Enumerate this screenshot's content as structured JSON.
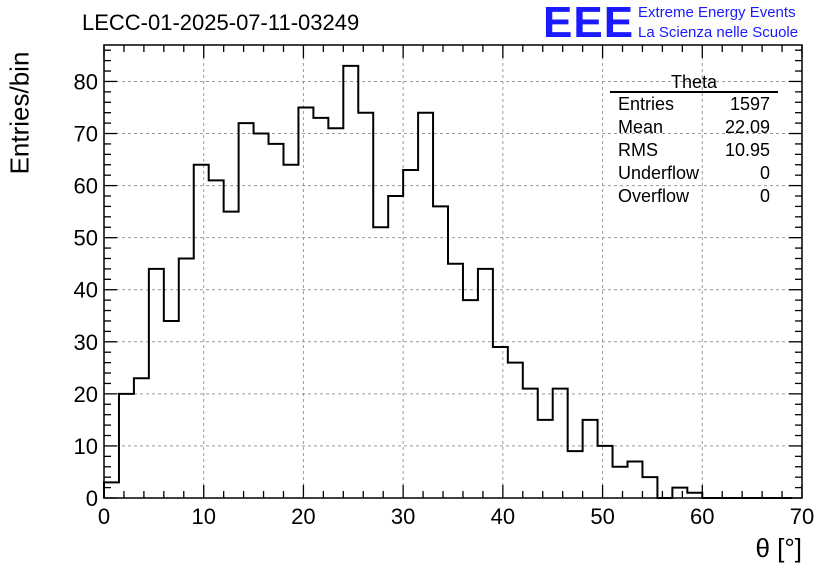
{
  "title": "LECC-01-2025-07-11-03249",
  "logo": {
    "mark": "EEE",
    "line1": "Extreme Energy Events",
    "line2": "La Scienza nelle Scuole",
    "color": "#1a1aff"
  },
  "stats_box": {
    "title": "Theta",
    "rows": [
      {
        "label": "Entries",
        "value": "1597"
      },
      {
        "label": "Mean",
        "value": "22.09"
      },
      {
        "label": "RMS",
        "value": "10.95"
      },
      {
        "label": "Underflow",
        "value": "0"
      },
      {
        "label": "Overflow",
        "value": "0"
      }
    ]
  },
  "chart_data": {
    "type": "bar",
    "style": "step-histogram",
    "xlabel": "θ [°]",
    "ylabel": "Entries/bin",
    "xlim": [
      0,
      70
    ],
    "ylim": [
      0,
      87
    ],
    "grid": true,
    "bin_width": 1.5,
    "x_ticks": [
      0,
      10,
      20,
      30,
      40,
      50,
      60,
      70
    ],
    "y_ticks": [
      0,
      10,
      20,
      30,
      40,
      50,
      60,
      70,
      80
    ],
    "bin_edges": [
      0,
      1.5,
      3,
      4.5,
      6,
      7.5,
      9,
      10.5,
      12,
      13.5,
      15,
      16.5,
      18,
      19.5,
      21,
      22.5,
      24,
      25.5,
      27,
      28.5,
      30,
      31.5,
      33,
      34.5,
      36,
      37.5,
      39,
      40.5,
      42,
      43.5,
      45,
      46.5,
      48,
      49.5,
      51,
      52.5,
      54,
      55.5,
      57,
      58.5,
      60,
      61.5,
      63,
      64.5,
      66,
      67.5,
      69
    ],
    "values": [
      3,
      20,
      23,
      44,
      34,
      46,
      64,
      61,
      55,
      72,
      70,
      68,
      64,
      75,
      73,
      71,
      83,
      74,
      52,
      58,
      63,
      74,
      56,
      45,
      38,
      44,
      29,
      26,
      21,
      15,
      21,
      9,
      15,
      10,
      6,
      7,
      4,
      0,
      2,
      1,
      0,
      0,
      0,
      0,
      0,
      0
    ]
  }
}
